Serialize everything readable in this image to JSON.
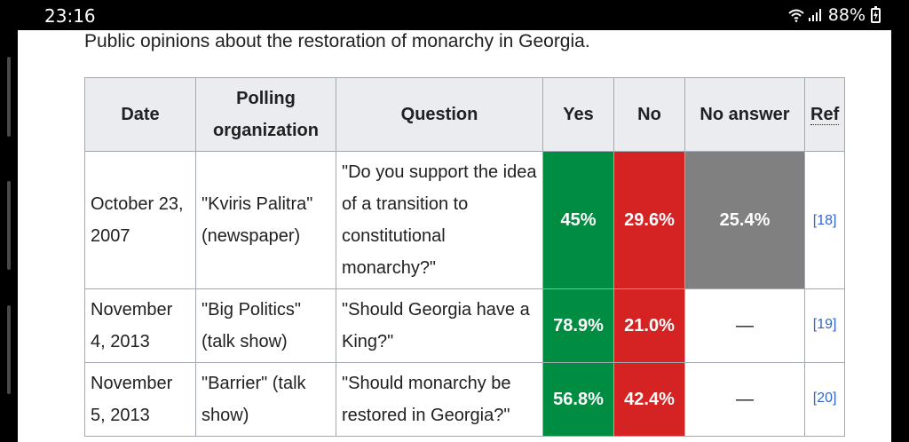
{
  "status_bar": {
    "time": "23:16",
    "battery_percent": "88%",
    "icons": [
      "wifi-icon",
      "signal-icon",
      "battery-charging-icon"
    ]
  },
  "caption": "Public opinions about the restoration of monarchy in Georgia.",
  "table": {
    "headers": [
      "Date",
      "Polling organization",
      "Question",
      "Yes",
      "No",
      "No answer",
      "Ref"
    ],
    "rows": [
      {
        "date": "October 23, 2007",
        "org": "\"Kviris Palitra\" (newspaper)",
        "question": "\"Do you support the idea of a transition to constitutional monarchy?\"",
        "yes": "45%",
        "no": "29.6%",
        "no_answer": "25.4%",
        "ref": "[18]"
      },
      {
        "date": "November 4, 2013",
        "org": "\"Big Politics\" (talk show)",
        "question": "\"Should Georgia have a King?\"",
        "yes": "78.9%",
        "no": "21.0%",
        "no_answer": "—",
        "ref": "[19]"
      },
      {
        "date": "November 5, 2013",
        "org": "\"Barrier\" (talk show)",
        "question": "\"Should monarchy be restored in Georgia?\"",
        "yes": "56.8%",
        "no": "42.4%",
        "no_answer": "—",
        "ref": "[20]"
      }
    ]
  },
  "colors": {
    "yes": "#008c41",
    "no": "#d52222",
    "no_answer": "#808080",
    "header_bg": "#eaecf0",
    "link": "#3366cc"
  }
}
